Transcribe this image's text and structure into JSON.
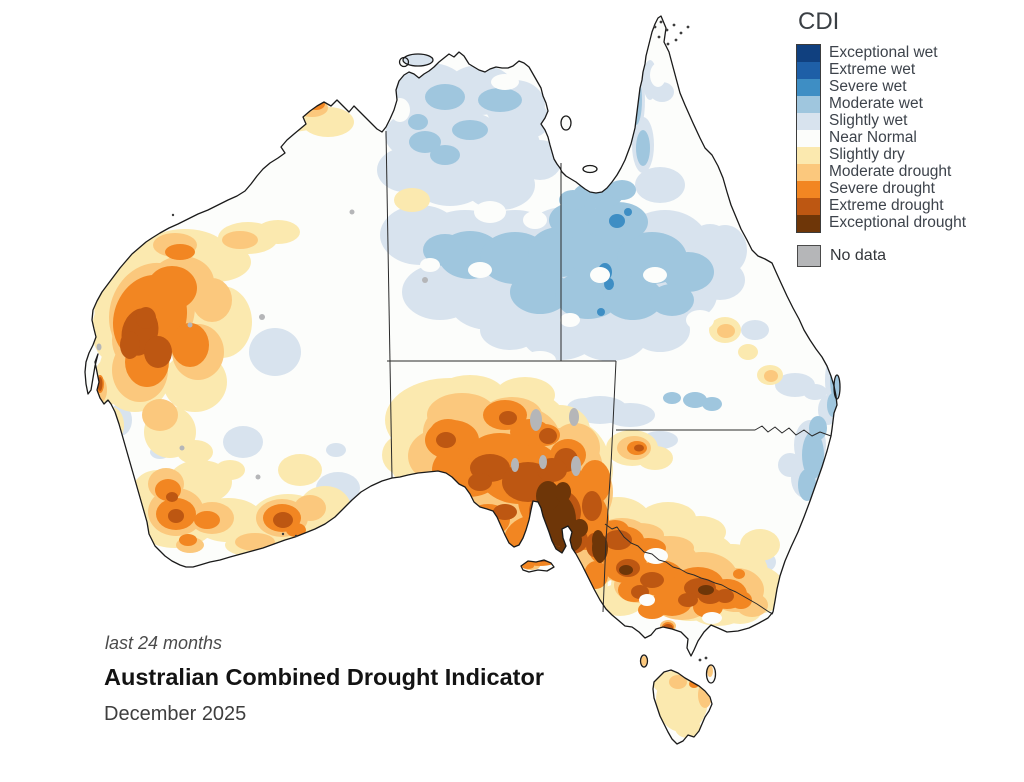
{
  "legend": {
    "title": "CDI",
    "items": [
      {
        "label": "Exceptional wet",
        "color": "#10407f"
      },
      {
        "label": "Extreme wet",
        "color": "#1e5fa7"
      },
      {
        "label": "Severe wet",
        "color": "#3e8ec4"
      },
      {
        "label": "Moderate wet",
        "color": "#9fc6de"
      },
      {
        "label": "Slightly wet",
        "color": "#d8e3ee"
      },
      {
        "label": "Near Normal",
        "color": "#fcfdfb"
      },
      {
        "label": "Slightly dry",
        "color": "#fbe9af"
      },
      {
        "label": "Moderate drought",
        "color": "#fbc87d"
      },
      {
        "label": "Severe drought",
        "color": "#f28622"
      },
      {
        "label": "Extreme drought",
        "color": "#bd5712"
      },
      {
        "label": "Exceptional drought",
        "color": "#6e3608"
      }
    ],
    "no_data": {
      "label": "No data",
      "color": "#b5b6b8"
    }
  },
  "footer": {
    "subtitle": "last 24 months",
    "title": "Australian Combined Drought Indicator",
    "date": "December 2025"
  },
  "palette": {
    "exceptional_wet": "#10407f",
    "extreme_wet": "#1e5fa7",
    "severe_wet": "#3e8ec4",
    "moderate_wet": "#9fc6de",
    "slightly_wet": "#d8e3ee",
    "near_normal": "#fcfdfb",
    "slightly_dry": "#fbe9af",
    "moderate_drought": "#fbc87d",
    "severe_drought": "#f28622",
    "extreme_drought": "#bd5712",
    "exceptional_drought": "#6e3608",
    "no_data": "#b5b6b8",
    "coastline": "#1a1a1a",
    "border_line": "#2a2a2a"
  }
}
